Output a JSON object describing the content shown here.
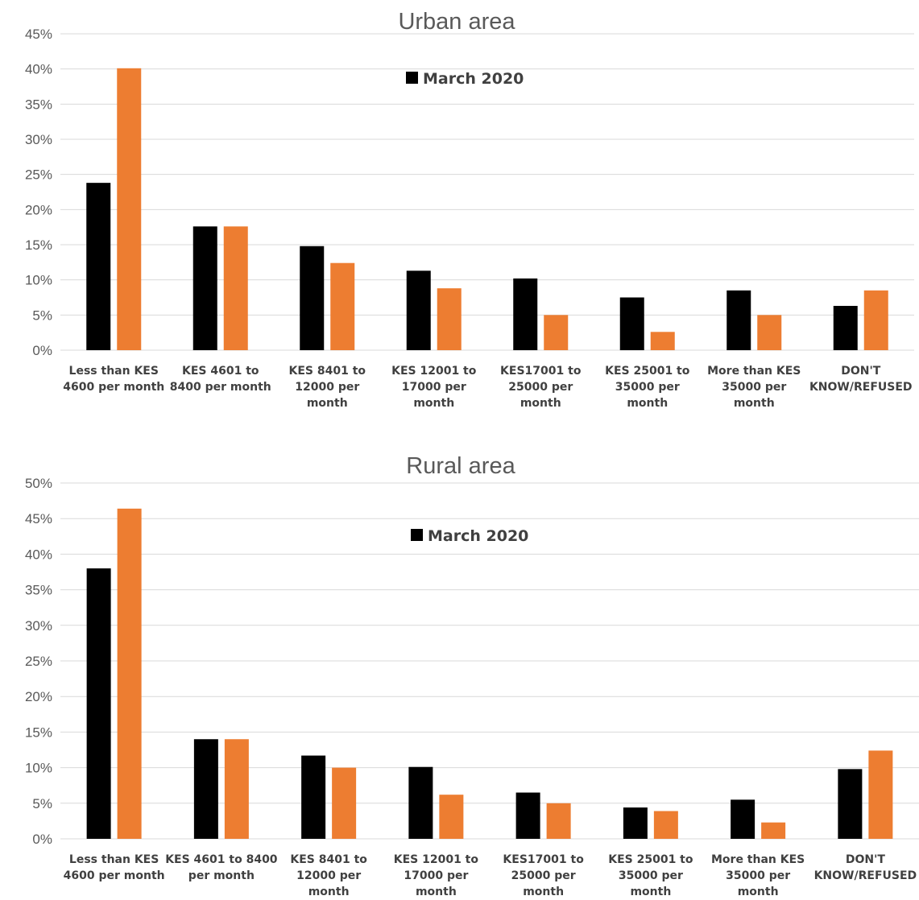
{
  "colors": {
    "black_series": "#000000",
    "orange_series": "#ed7d31",
    "grid": "#d9d9d9",
    "text": "#595959"
  },
  "chart_data": [
    {
      "type": "bar",
      "title": "Urban area",
      "legend": {
        "entries": [
          {
            "label": "March 2020",
            "color": "#000000"
          }
        ],
        "position": "top-center"
      },
      "ylim": [
        0,
        45
      ],
      "ytick_labels": [
        "0%",
        "5%",
        "10%",
        "15%",
        "20%",
        "25%",
        "30%",
        "35%",
        "40%",
        "45%"
      ],
      "grid": true,
      "categories": [
        [
          "Less than KES",
          "4600 per month"
        ],
        [
          "KES 4601 to",
          "8400 per month"
        ],
        [
          "KES 8401 to",
          "12000 per",
          "month"
        ],
        [
          "KES 12001 to",
          "17000 per",
          "month"
        ],
        [
          "KES17001 to",
          "25000 per",
          "month"
        ],
        [
          "KES 25001 to",
          "35000 per",
          "month"
        ],
        [
          "More than KES",
          "35000 per",
          "month"
        ],
        [
          "DON'T",
          "KNOW/REFUSED"
        ]
      ],
      "series": [
        {
          "name": "March 2020",
          "color": "#000000",
          "values": [
            23.8,
            17.6,
            14.8,
            11.3,
            10.2,
            7.5,
            8.5,
            6.3
          ]
        },
        {
          "color": "#ed7d31",
          "values": [
            40.1,
            17.6,
            12.4,
            8.8,
            5.0,
            2.6,
            5.0,
            8.5
          ]
        }
      ]
    },
    {
      "type": "bar",
      "title": "Rural area",
      "legend": {
        "entries": [
          {
            "label": "March 2020",
            "color": "#000000"
          }
        ],
        "position": "top-center"
      },
      "ylim": [
        0,
        50
      ],
      "ytick_labels": [
        "0%",
        "5%",
        "10%",
        "15%",
        "20%",
        "25%",
        "30%",
        "35%",
        "40%",
        "45%",
        "50%"
      ],
      "grid": true,
      "categories": [
        [
          "Less than KES",
          "4600 per month"
        ],
        [
          "KES 4601 to 8400",
          "per month"
        ],
        [
          "KES 8401 to",
          "12000 per",
          "month"
        ],
        [
          "KES 12001 to",
          "17000 per",
          "month"
        ],
        [
          "KES17001 to",
          "25000 per",
          "month"
        ],
        [
          "KES 25001 to",
          "35000 per",
          "month"
        ],
        [
          "More than KES",
          "35000 per",
          "month"
        ],
        [
          "DON'T",
          "KNOW/REFUSED"
        ]
      ],
      "series": [
        {
          "name": "March 2020",
          "color": "#000000",
          "values": [
            38.0,
            14.0,
            11.7,
            10.1,
            6.5,
            4.4,
            5.5,
            9.8
          ]
        },
        {
          "color": "#ed7d31",
          "values": [
            46.4,
            14.0,
            10.0,
            6.2,
            5.0,
            3.9,
            2.3,
            12.4
          ]
        }
      ]
    }
  ]
}
